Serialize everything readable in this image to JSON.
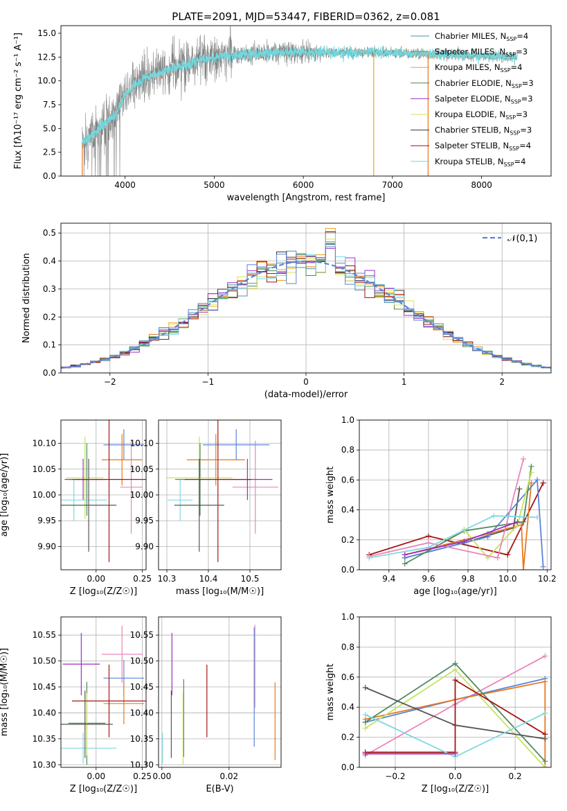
{
  "title": "PLATE=2091, MJD=53447, FIBERID=0362, z=0.081",
  "colors": {
    "Chabrier MILES": "#4a90a4",
    "Salpeter MILES": "#e8741c",
    "Kroupa MILES": "#f0a020",
    "Chabrier ELODIE": "#4b8b3b",
    "Salpeter ELODIE": "#9b30c8",
    "Kroupa ELODIE": "#d9e05a",
    "Chabrier STELIB": "#333333",
    "Salpeter STELIB": "#a01010",
    "Kroupa STELIB": "#70d8e0",
    "pink": "#e886b8",
    "blue": "#5b84d6",
    "orange": "#e6781e",
    "green": "#4e8a5a",
    "yellowgreen": "#c8e060",
    "purple": "#9b2fc0",
    "darkred": "#a51515",
    "cyan": "#7fd8e0",
    "gray": "#555555",
    "spectrum_gray": "#808080"
  },
  "chart_data": [
    {
      "id": "spectrum",
      "type": "line",
      "xlabel": "wavelength [Angstrom, rest frame]",
      "ylabel": "Flux [f$_\\lambda$10$^{-17}$ erg cm$^{-2}$ s$^{-1}$ A$^{-1}$]",
      "ylabel_text": "Flux [fλ10⁻¹⁷ erg cm⁻² s⁻¹ A⁻¹]",
      "xlim": [
        3280,
        8780
      ],
      "ylim": [
        0,
        15.8
      ],
      "xticks": [
        4000,
        5000,
        6000,
        7000,
        8000
      ],
      "yticks": [
        0.0,
        2.5,
        5.0,
        7.5,
        10.0,
        12.5,
        15.0
      ],
      "ytick_labels": [
        "0.0",
        "2.5",
        "5.0",
        "7.5",
        "10.0",
        "12.5",
        "15.0"
      ],
      "observed_range": [
        3520,
        8400
      ],
      "legend_position": "upper right",
      "legend": [
        {
          "name": "Chabrier MILES",
          "nssp": "4"
        },
        {
          "name": "Salpeter MILES",
          "nssp": "3"
        },
        {
          "name": "Kroupa MILES",
          "nssp": "4"
        },
        {
          "name": "Chabrier ELODIE",
          "nssp": "3"
        },
        {
          "name": "Salpeter ELODIE",
          "nssp": "3"
        },
        {
          "name": "Kroupa ELODIE",
          "nssp": "3"
        },
        {
          "name": "Chabrier STELIB",
          "nssp": "3"
        },
        {
          "name": "Salpeter STELIB",
          "nssp": "4"
        },
        {
          "name": "Kroupa STELIB",
          "nssp": "4"
        }
      ],
      "continuum": [
        [
          3520,
          3.5
        ],
        [
          3600,
          4.0
        ],
        [
          3700,
          5.0
        ],
        [
          3800,
          5.8
        ],
        [
          3900,
          6.5
        ],
        [
          3950,
          7.5
        ],
        [
          4000,
          8.5
        ],
        [
          4100,
          9.5
        ],
        [
          4200,
          10.2
        ],
        [
          4300,
          10.6
        ],
        [
          4500,
          11.2
        ],
        [
          4700,
          11.8
        ],
        [
          4900,
          12.3
        ],
        [
          5100,
          12.6
        ],
        [
          5300,
          12.8
        ],
        [
          5500,
          12.9
        ],
        [
          5700,
          13.0
        ],
        [
          6000,
          13.0
        ],
        [
          6300,
          13.0
        ],
        [
          6600,
          13.0
        ],
        [
          6900,
          13.0
        ],
        [
          7200,
          12.9
        ],
        [
          7500,
          12.8
        ],
        [
          7800,
          12.7
        ],
        [
          8100,
          12.6
        ],
        [
          8400,
          12.5
        ]
      ]
    },
    {
      "id": "residuals",
      "type": "histogram",
      "xlabel": "(data-model)/error",
      "ylabel": "Normed distribution",
      "xlim": [
        -2.5,
        2.5
      ],
      "ylim": [
        0,
        0.535
      ],
      "xticks": [
        -2,
        -1,
        0,
        1,
        2
      ],
      "xtick_labels": [
        "−2",
        "−1",
        "0",
        "1",
        "2"
      ],
      "yticks": [
        0.0,
        0.1,
        0.2,
        0.3,
        0.4,
        0.5
      ],
      "ytick_labels": [
        "0.0",
        "0.1",
        "0.2",
        "0.3",
        "0.4",
        "0.5"
      ],
      "grid": true,
      "legend": [
        {
          "name": "𝒩(0,1)",
          "style": "dashed"
        }
      ],
      "legend_position": "upper right",
      "bin_width": 0.1
    },
    {
      "id": "age_vs_Z",
      "type": "errorbar",
      "xlabel": "Z [log₁₀(Z/Z☉)]",
      "ylabel": "age  [log₁₀(age/yr)]",
      "xlim": [
        -0.19,
        0.27
      ],
      "ylim": [
        9.855,
        10.145
      ],
      "xticks": [
        0.0,
        0.25
      ],
      "xtick_labels": [
        "0.00",
        "0.25"
      ],
      "yticks": [
        9.9,
        9.95,
        10.0,
        10.05,
        10.1
      ],
      "ytick_labels": [
        "9.90",
        "9.95",
        "10.00",
        "10.05",
        "10.10"
      ],
      "grid": true,
      "points": [
        {
          "c": "pink",
          "x": 0.19,
          "xe": 0.06,
          "y": 10.015,
          "ye": 0.09
        },
        {
          "c": "blue",
          "x": 0.15,
          "xe": 0.11,
          "y": 10.097,
          "ye": 0.03
        },
        {
          "c": "orange",
          "x": 0.14,
          "xe": 0.11,
          "y": 10.068,
          "ye": 0.05
        },
        {
          "c": "green",
          "x": -0.05,
          "xe": 0.1,
          "y": 10.03,
          "ye": 0.07
        },
        {
          "c": "yellowgreen",
          "x": -0.06,
          "xe": 0.1,
          "y": 10.033,
          "ye": 0.08
        },
        {
          "c": "purple",
          "x": -0.07,
          "xe": 0.1,
          "y": 10.03,
          "ye": 0.04
        },
        {
          "c": "darkred",
          "x": 0.07,
          "xe": 0.2,
          "y": 10.03,
          "ye": 0.16
        },
        {
          "c": "cyan",
          "x": -0.12,
          "xe": 0.18,
          "y": 9.99,
          "ye": 0.04
        },
        {
          "c": "gray",
          "x": -0.04,
          "xe": 0.15,
          "y": 9.98,
          "ye": 0.09
        }
      ]
    },
    {
      "id": "age_vs_mass",
      "type": "errorbar",
      "xlabel": "mass [log₁₀(M/M☉)]",
      "ylabel": "",
      "xlim": [
        10.28,
        10.575
      ],
      "ylim": [
        9.855,
        10.145
      ],
      "xticks": [
        10.3,
        10.4,
        10.5
      ],
      "xtick_labels": [
        "10.3",
        "10.4",
        "10.5"
      ],
      "yticks": [
        9.9,
        9.95,
        10.0,
        10.05,
        10.1
      ],
      "ytick_labels": [
        "9.90",
        "9.95",
        "10.00",
        "10.05",
        "10.10"
      ],
      "grid": true,
      "points": [
        {
          "c": "pink",
          "x": 10.513,
          "xe": 0.055,
          "y": 10.015,
          "ye": 0.09
        },
        {
          "c": "blue",
          "x": 10.467,
          "xe": 0.08,
          "y": 10.097,
          "ye": 0.03
        },
        {
          "c": "orange",
          "x": 10.418,
          "xe": 0.07,
          "y": 10.068,
          "ye": 0.05
        },
        {
          "c": "green",
          "x": 10.38,
          "xe": 0.06,
          "y": 10.03,
          "ye": 0.07
        },
        {
          "c": "yellowgreen",
          "x": 10.378,
          "xe": 0.08,
          "y": 10.033,
          "ye": 0.08
        },
        {
          "c": "purple",
          "x": 10.494,
          "xe": 0.06,
          "y": 10.03,
          "ye": 0.04
        },
        {
          "c": "darkred",
          "x": 10.423,
          "xe": 0.08,
          "y": 10.03,
          "ye": 0.16
        },
        {
          "c": "cyan",
          "x": 10.332,
          "xe": 0.03,
          "y": 9.99,
          "ye": 0.04
        },
        {
          "c": "gray",
          "x": 10.378,
          "xe": 0.06,
          "y": 9.98,
          "ye": 0.09
        }
      ]
    },
    {
      "id": "weight_vs_age",
      "type": "line",
      "xlabel": "age  [log₁₀(age/yr)]",
      "ylabel": "mass weight",
      "xlim": [
        9.25,
        10.22
      ],
      "ylim": [
        0,
        1.0
      ],
      "xticks": [
        9.4,
        9.6,
        9.8,
        10.0,
        10.2
      ],
      "xtick_labels": [
        "9.4",
        "9.6",
        "9.8",
        "10.0",
        "10.2"
      ],
      "yticks": [
        0.0,
        0.2,
        0.4,
        0.6,
        0.8,
        1.0
      ],
      "ytick_labels": [
        "0.0",
        "0.2",
        "0.4",
        "0.6",
        "0.8",
        "1.0"
      ],
      "grid": true,
      "series": [
        {
          "c": "darkred",
          "x": [
            9.3,
            9.6,
            10.0,
            10.18
          ],
          "y": [
            0.1,
            0.225,
            0.1,
            0.58
          ]
        },
        {
          "c": "gray",
          "x": [
            9.48,
            9.78,
            10.03,
            10.06
          ],
          "y": [
            0.08,
            0.18,
            0.28,
            0.54
          ]
        },
        {
          "c": "orange",
          "x": [
            9.48,
            9.9,
            10.07,
            10.08,
            10.12
          ],
          "y": [
            0.1,
            0.24,
            0.3,
            0.0,
            0.58
          ]
        },
        {
          "c": "blue",
          "x": [
            9.48,
            9.9,
            10.15,
            10.18
          ],
          "y": [
            0.08,
            0.22,
            0.6,
            0.02
          ]
        },
        {
          "c": "green",
          "x": [
            9.48,
            9.78,
            10.08,
            10.12
          ],
          "y": [
            0.04,
            0.26,
            0.32,
            0.69
          ]
        },
        {
          "c": "yellowgreen",
          "x": [
            9.78,
            9.9,
            10.05,
            10.12
          ],
          "y": [
            0.27,
            0.08,
            0.3,
            0.65
          ]
        },
        {
          "c": "pink",
          "x": [
            9.3,
            9.6,
            9.95,
            10.08
          ],
          "y": [
            0.09,
            0.18,
            0.08,
            0.74
          ]
        },
        {
          "c": "cyan",
          "x": [
            9.3,
            9.6,
            9.93,
            10.15
          ],
          "y": [
            0.08,
            0.15,
            0.36,
            0.35
          ]
        },
        {
          "c": "purple",
          "x": [
            9.48,
            9.78,
            10.05
          ],
          "y": [
            0.1,
            0.19,
            0.32
          ]
        }
      ]
    },
    {
      "id": "mass_vs_Z",
      "type": "errorbar",
      "xlabel": "Z [log₁₀(Z/Z☉)]",
      "ylabel": "mass [log₁₀(M/M☉)]",
      "xlim": [
        -0.19,
        0.27
      ],
      "ylim": [
        10.295,
        10.585
      ],
      "xticks": [
        0.0,
        0.25
      ],
      "xtick_labels": [
        "0.00",
        "0.25"
      ],
      "yticks": [
        10.3,
        10.35,
        10.4,
        10.45,
        10.5,
        10.55
      ],
      "ytick_labels": [
        "10.30",
        "10.35",
        "10.40",
        "10.45",
        "10.50",
        "10.55"
      ],
      "grid": true,
      "points": [
        {
          "c": "pink",
          "x": 0.14,
          "xe": 0.11,
          "y": 10.513,
          "ye": 0.055
        },
        {
          "c": "blue",
          "x": 0.15,
          "xe": 0.11,
          "y": 10.467,
          "ye": 0.035
        },
        {
          "c": "orange",
          "x": 0.15,
          "xe": 0.11,
          "y": 10.418,
          "ye": 0.04
        },
        {
          "c": "green",
          "x": -0.05,
          "xe": 0.1,
          "y": 10.38,
          "ye": 0.08
        },
        {
          "c": "yellowgreen",
          "x": -0.05,
          "xe": 0.1,
          "y": 10.378,
          "ye": 0.06
        },
        {
          "c": "purple",
          "x": -0.08,
          "xe": 0.1,
          "y": 10.494,
          "ye": 0.06
        },
        {
          "c": "darkred",
          "x": 0.07,
          "xe": 0.2,
          "y": 10.423,
          "ye": 0.07
        },
        {
          "c": "cyan",
          "x": -0.07,
          "xe": 0.18,
          "y": 10.332,
          "ye": 0.03
        },
        {
          "c": "gray",
          "x": -0.06,
          "xe": 0.15,
          "y": 10.378,
          "ye": 0.065
        }
      ]
    },
    {
      "id": "mass_vs_EBV",
      "type": "errorbar",
      "xlabel": "E(B-V)",
      "ylabel": "",
      "xlim": [
        -0.001,
        0.0355
      ],
      "ylim": [
        10.295,
        10.585
      ],
      "xticks": [
        0.0,
        0.02
      ],
      "xtick_labels": [
        "0.00",
        "0.02"
      ],
      "yticks": [
        10.3,
        10.35,
        10.4,
        10.45,
        10.5,
        10.55
      ],
      "ytick_labels": [
        "10.30",
        "10.35",
        "10.40",
        "10.45",
        "10.50",
        "10.55"
      ],
      "grid": true,
      "points": [
        {
          "c": "pink",
          "x": 0.0277,
          "xe": 0,
          "y": 10.49,
          "ye": 0.08
        },
        {
          "c": "blue",
          "x": 0.0275,
          "xe": 0,
          "y": 10.45,
          "ye": 0.115
        },
        {
          "c": "orange",
          "x": 0.0337,
          "xe": 0,
          "y": 10.384,
          "ye": 0.075
        },
        {
          "c": "green",
          "x": 0.0065,
          "xe": 0,
          "y": 10.39,
          "ye": 0.075
        },
        {
          "c": "yellowgreen",
          "x": 0.0063,
          "xe": 0,
          "y": 10.37,
          "ye": 0.07
        },
        {
          "c": "purple",
          "x": 0.003,
          "xe": 0,
          "y": 10.494,
          "ye": 0.06
        },
        {
          "c": "darkred",
          "x": 0.0134,
          "xe": 0,
          "y": 10.423,
          "ye": 0.07
        },
        {
          "c": "cyan",
          "x": 0.0002,
          "xe": 0,
          "y": 10.332,
          "ye": 0.03
        },
        {
          "c": "gray",
          "x": 0.0028,
          "xe": 0,
          "y": 10.378,
          "ye": 0.065
        }
      ]
    },
    {
      "id": "weight_vs_Z",
      "type": "line",
      "xlabel": "Z [log₁₀(Z/Z☉)]",
      "ylabel": "mass weight",
      "xlim": [
        -0.32,
        0.32
      ],
      "ylim": [
        0,
        1.0
      ],
      "xticks": [
        -0.2,
        0.0,
        0.2
      ],
      "xtick_labels": [
        "−0.2",
        "0.0",
        "0.2"
      ],
      "yticks": [
        0.0,
        0.2,
        0.4,
        0.6,
        0.8,
        1.0
      ],
      "ytick_labels": [
        "0.0",
        "0.2",
        "0.4",
        "0.6",
        "0.8",
        "1.0"
      ],
      "grid": true,
      "series": [
        {
          "c": "pink",
          "x": [
            -0.3,
            0.0,
            0.3
          ],
          "y": [
            0.08,
            0.42,
            0.74
          ]
        },
        {
          "c": "blue",
          "x": [
            -0.3,
            0.0,
            0.3
          ],
          "y": [
            0.3,
            0.45,
            0.59
          ]
        },
        {
          "c": "orange",
          "x": [
            -0.3,
            0.0,
            0.3,
            0.3
          ],
          "y": [
            0.32,
            0.45,
            0.57,
            0.0
          ]
        },
        {
          "c": "green",
          "x": [
            -0.3,
            0.0,
            0.3
          ],
          "y": [
            0.3,
            0.69,
            0.04
          ]
        },
        {
          "c": "yellowgreen",
          "x": [
            -0.3,
            0.0,
            0.3
          ],
          "y": [
            0.26,
            0.65,
            0.0
          ]
        },
        {
          "c": "gray",
          "x": [
            -0.3,
            0.0,
            0.3
          ],
          "y": [
            0.53,
            0.28,
            0.19
          ]
        },
        {
          "c": "darkred",
          "x": [
            -0.3,
            0.0,
            0.0,
            0.3
          ],
          "y": [
            0.1,
            0.1,
            0.58,
            0.22
          ]
        },
        {
          "c": "cyan",
          "x": [
            -0.3,
            0.0,
            0.3
          ],
          "y": [
            0.35,
            0.07,
            0.36
          ]
        },
        {
          "c": "purple",
          "x": [
            -0.3,
            0.0
          ],
          "y": [
            0.09,
            0.09
          ]
        }
      ]
    }
  ]
}
